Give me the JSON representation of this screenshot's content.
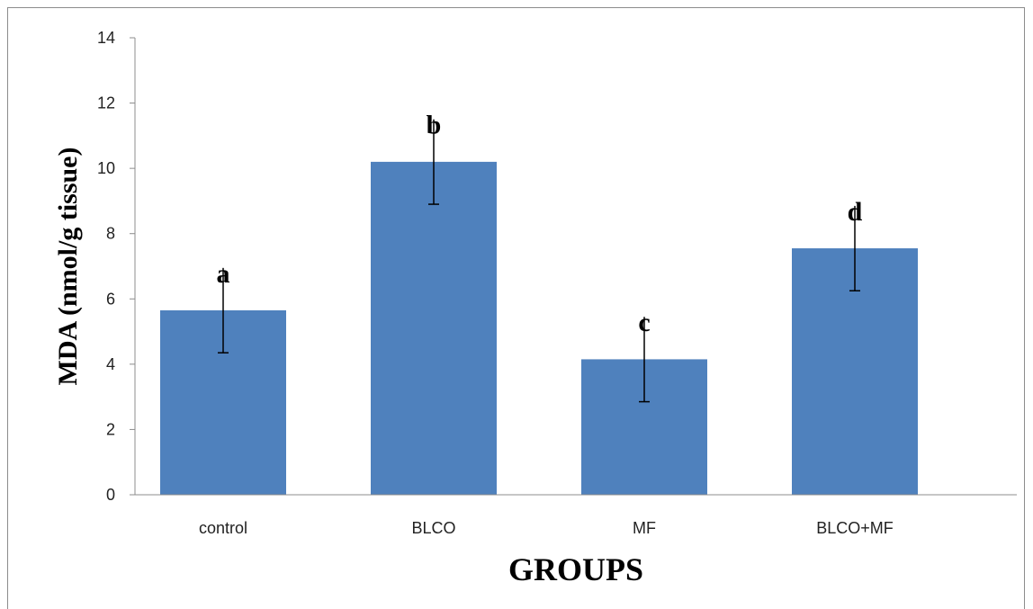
{
  "chart_data": {
    "type": "bar",
    "categories": [
      "control",
      "BLCO",
      "MF",
      "BLCO+MF"
    ],
    "values": [
      5.65,
      10.2,
      4.15,
      7.55
    ],
    "error": [
      1.3,
      1.3,
      1.3,
      1.3
    ],
    "significance_letters": [
      "a",
      "b",
      "c",
      "d"
    ],
    "title": "",
    "xlabel": "GROUPS",
    "ylabel": "MDA  (nmol/g tissue)",
    "ylim": [
      0,
      14
    ],
    "yticks": [
      0,
      2,
      4,
      6,
      8,
      10,
      12,
      14
    ],
    "bar_color": "#4f81bd",
    "grid": false,
    "legend": "none"
  }
}
